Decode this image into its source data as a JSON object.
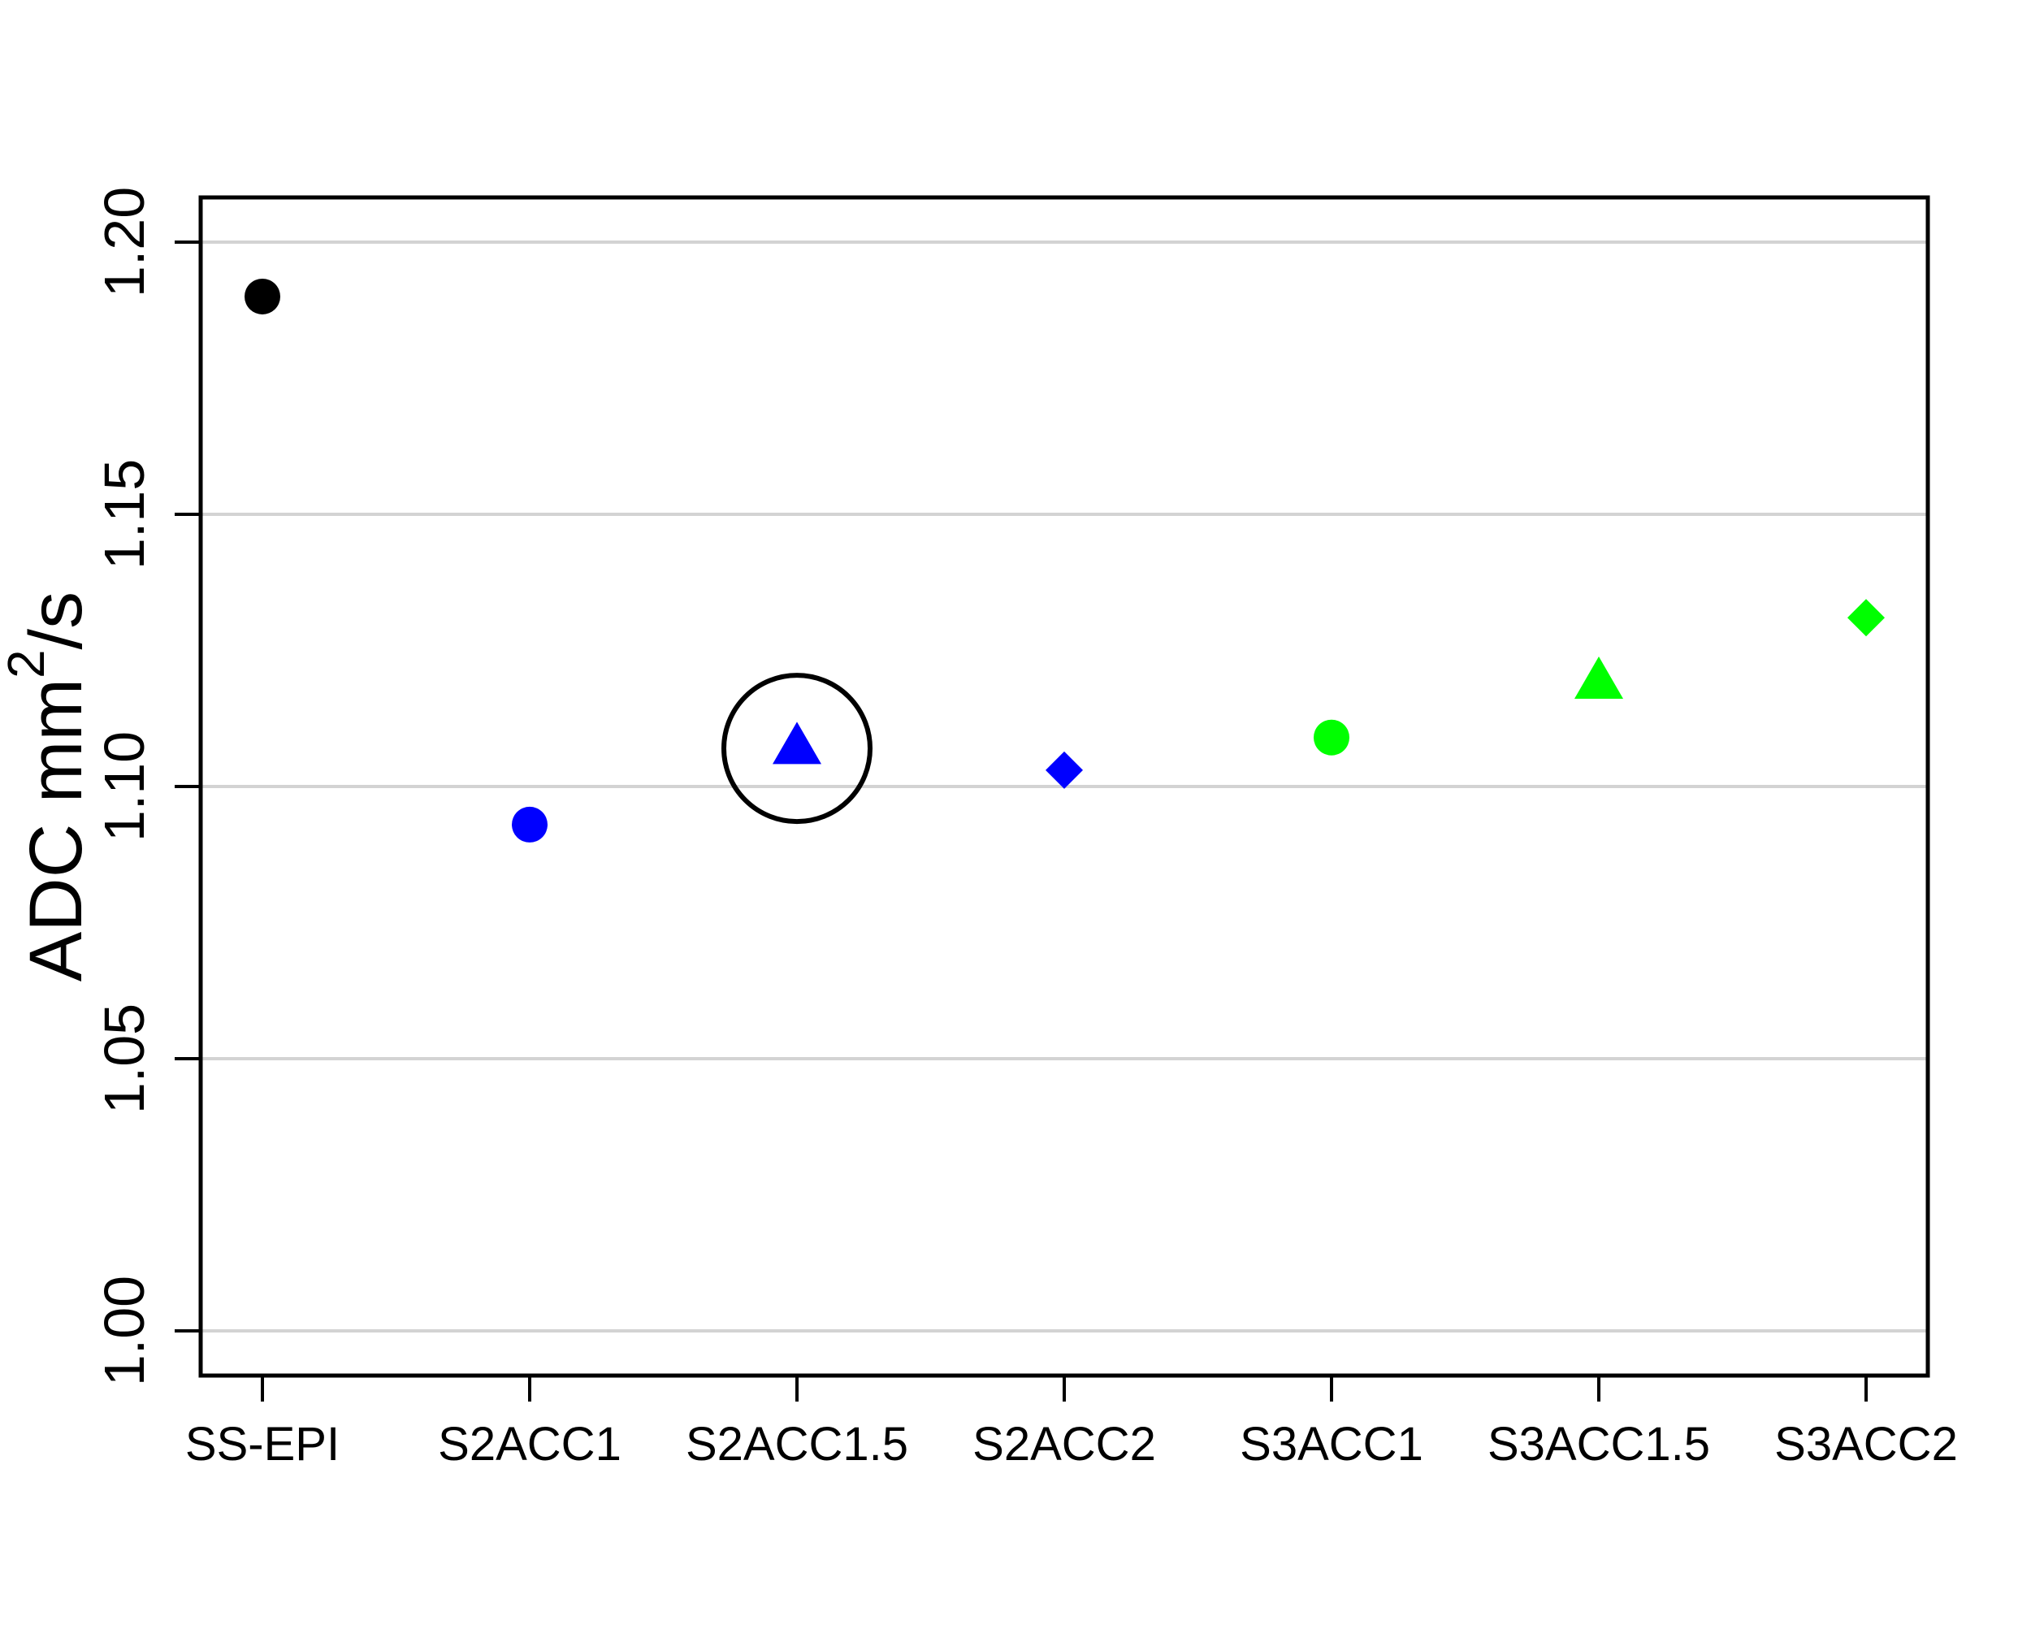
{
  "figure": {
    "background": "#FFFFFF",
    "palette": {
      "black": "#000000",
      "blue": "#0000FF",
      "green": "#00FF00",
      "gridline": "#D3D3D3"
    }
  },
  "chart_data": {
    "type": "scatter",
    "title": "",
    "xlabel": "",
    "ylabel": "ADC mm²/s",
    "ylabel_parts": {
      "prefix": "ADC mm",
      "sup": "2",
      "suffix": "/s"
    },
    "categories": [
      "SS-EPI",
      "S2ACC1",
      "S2ACC1.5",
      "S2ACC2",
      "S3ACC1",
      "S3ACC1.5",
      "S3ACC2"
    ],
    "points": [
      {
        "category": "SS-EPI",
        "value": 1.19,
        "marker": "circle",
        "color": "#000000"
      },
      {
        "category": "S2ACC1",
        "value": 1.093,
        "marker": "circle",
        "color": "#0000FF"
      },
      {
        "category": "S2ACC1.5",
        "value": 1.108,
        "marker": "triangle",
        "color": "#0000FF"
      },
      {
        "category": "S2ACC2",
        "value": 1.103,
        "marker": "diamond",
        "color": "#0000FF"
      },
      {
        "category": "S3ACC1",
        "value": 1.109,
        "marker": "circle",
        "color": "#00FF00"
      },
      {
        "category": "S3ACC1.5",
        "value": 1.12,
        "marker": "triangle",
        "color": "#00FF00"
      },
      {
        "category": "S3ACC2",
        "value": 1.131,
        "marker": "diamond",
        "color": "#00FF00"
      }
    ],
    "y_ticks": [
      {
        "label": "1.20",
        "value": 1.2
      },
      {
        "label": "1.15",
        "value": 1.15
      },
      {
        "label": "1.10",
        "value": 1.1
      },
      {
        "label": "1.05",
        "value": 1.05
      },
      {
        "label": "1.00",
        "value": 1.0
      }
    ],
    "ylim": [
      0.9918,
      1.2082
    ],
    "grid": "horizontal",
    "grid_color": "#D3D3D3",
    "axis_color": "#000000",
    "legend": "none",
    "annotation": {
      "shape": "open-circle",
      "category": "S2ACC1.5",
      "value": 1.107,
      "color": "#000000"
    }
  }
}
